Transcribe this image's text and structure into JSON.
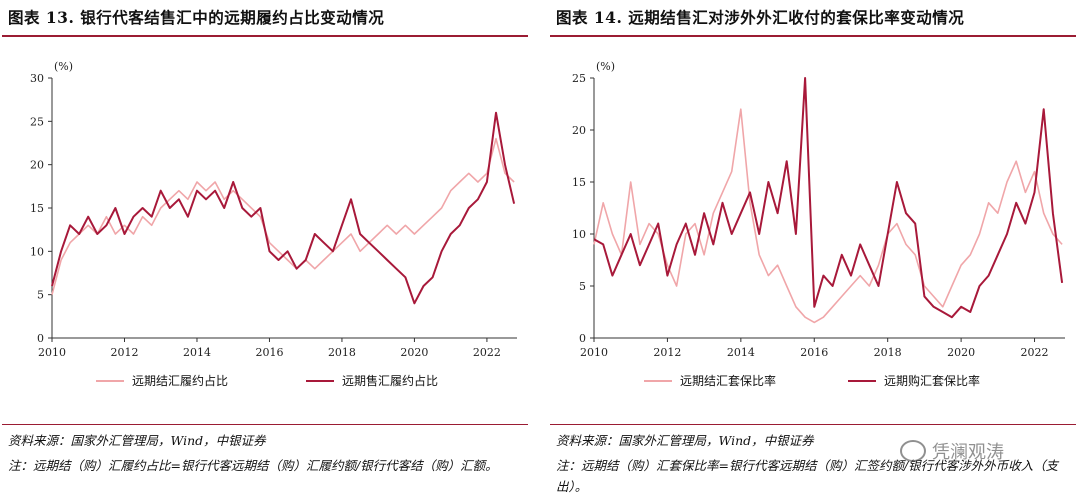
{
  "left": {
    "title": "图表 13. 银行代客结售汇中的远期履约占比变动情况",
    "source": "资料来源：国家外汇管理局，Wind，中银证券",
    "note": "注：远期结（购）汇履约占比=银行代客远期结（购）汇履约额/银行代客结（购）汇额。"
  },
  "right": {
    "title": "图表 14. 远期结售汇对涉外外汇收付的套保比率变动情况",
    "source": "资料来源：国家外汇管理局，Wind，中银证券",
    "note": "注：远期结（购）汇套保比率=银行代客远期结（购）汇签约额/银行代客涉外外币收入（支出）。"
  },
  "watermark": "凭澜观涛",
  "colors": {
    "light": "#f0a6a9",
    "dark": "#a8193a",
    "axis": "#333333"
  },
  "chart_data": [
    {
      "type": "line",
      "unit_label": "(%)",
      "ylim": [
        0,
        30
      ],
      "yticks": [
        0,
        5,
        10,
        15,
        20,
        25,
        30
      ],
      "xlim": [
        2010,
        2022.83
      ],
      "xticks": [
        2010,
        2012,
        2014,
        2016,
        2018,
        2020,
        2022
      ],
      "series": [
        {
          "name": "远期结汇履约占比",
          "color": "#f0a6a9",
          "x": [
            2010.0,
            2010.25,
            2010.5,
            2010.75,
            2011.0,
            2011.25,
            2011.5,
            2011.75,
            2012.0,
            2012.25,
            2012.5,
            2012.75,
            2013.0,
            2013.25,
            2013.5,
            2013.75,
            2014.0,
            2014.25,
            2014.5,
            2014.75,
            2015.0,
            2015.25,
            2015.5,
            2015.75,
            2016.0,
            2016.25,
            2016.5,
            2016.75,
            2017.0,
            2017.25,
            2017.5,
            2017.75,
            2018.0,
            2018.25,
            2018.5,
            2018.75,
            2019.0,
            2019.25,
            2019.5,
            2019.75,
            2020.0,
            2020.25,
            2020.5,
            2020.75,
            2021.0,
            2021.25,
            2021.5,
            2021.75,
            2022.0,
            2022.25,
            2022.5,
            2022.75
          ],
          "values": [
            5,
            9,
            11,
            12,
            13,
            12,
            14,
            12,
            13,
            12,
            14,
            13,
            15,
            16,
            17,
            16,
            18,
            17,
            18,
            16,
            17,
            16,
            15,
            14,
            11,
            10,
            9,
            8,
            9,
            8,
            9,
            10,
            11,
            12,
            10,
            11,
            12,
            13,
            12,
            13,
            12,
            13,
            14,
            15,
            17,
            18,
            19,
            18,
            19,
            23,
            19,
            18
          ]
        },
        {
          "name": "远期售汇履约占比",
          "color": "#a8193a",
          "x": [
            2010.0,
            2010.25,
            2010.5,
            2010.75,
            2011.0,
            2011.25,
            2011.5,
            2011.75,
            2012.0,
            2012.25,
            2012.5,
            2012.75,
            2013.0,
            2013.25,
            2013.5,
            2013.75,
            2014.0,
            2014.25,
            2014.5,
            2014.75,
            2015.0,
            2015.25,
            2015.5,
            2015.75,
            2016.0,
            2016.25,
            2016.5,
            2016.75,
            2017.0,
            2017.25,
            2017.5,
            2017.75,
            2018.0,
            2018.25,
            2018.5,
            2018.75,
            2019.0,
            2019.25,
            2019.5,
            2019.75,
            2020.0,
            2020.25,
            2020.5,
            2020.75,
            2021.0,
            2021.25,
            2021.5,
            2021.75,
            2022.0,
            2022.25,
            2022.5,
            2022.75
          ],
          "values": [
            6,
            10,
            13,
            12,
            14,
            12,
            13,
            15,
            12,
            14,
            15,
            14,
            17,
            15,
            16,
            14,
            17,
            16,
            17,
            15,
            18,
            15,
            14,
            15,
            10,
            9,
            10,
            8,
            9,
            12,
            11,
            10,
            13,
            16,
            12,
            11,
            10,
            9,
            8,
            7,
            4,
            6,
            7,
            10,
            12,
            13,
            15,
            16,
            18,
            26,
            20,
            15.5
          ]
        }
      ]
    },
    {
      "type": "line",
      "unit_label": "(%)",
      "ylim": [
        0,
        25
      ],
      "yticks": [
        0,
        5,
        10,
        15,
        20,
        25
      ],
      "xlim": [
        2010,
        2022.83
      ],
      "xticks": [
        2010,
        2012,
        2014,
        2016,
        2018,
        2020,
        2022
      ],
      "series": [
        {
          "name": "远期结汇套保比率",
          "color": "#f0a6a9",
          "x": [
            2010.0,
            2010.25,
            2010.5,
            2010.75,
            2011.0,
            2011.25,
            2011.5,
            2011.75,
            2012.0,
            2012.25,
            2012.5,
            2012.75,
            2013.0,
            2013.25,
            2013.5,
            2013.75,
            2014.0,
            2014.25,
            2014.5,
            2014.75,
            2015.0,
            2015.25,
            2015.5,
            2015.75,
            2016.0,
            2016.25,
            2016.5,
            2016.75,
            2017.0,
            2017.25,
            2017.5,
            2017.75,
            2018.0,
            2018.25,
            2018.5,
            2018.75,
            2019.0,
            2019.25,
            2019.5,
            2019.75,
            2020.0,
            2020.25,
            2020.5,
            2020.75,
            2021.0,
            2021.25,
            2021.5,
            2021.75,
            2022.0,
            2022.25,
            2022.5,
            2022.75
          ],
          "values": [
            9,
            13,
            10,
            8,
            15,
            9,
            11,
            10,
            7,
            5,
            10,
            11,
            8,
            12,
            14,
            16,
            22,
            13,
            8,
            6,
            7,
            5,
            3,
            2,
            1.5,
            2,
            3,
            4,
            5,
            6,
            5,
            7,
            10,
            11,
            9,
            8,
            5,
            4,
            3,
            5,
            7,
            8,
            10,
            13,
            12,
            15,
            17,
            14,
            16,
            12,
            10,
            9
          ]
        },
        {
          "name": "远期购汇套保比率",
          "color": "#a8193a",
          "x": [
            2010.0,
            2010.25,
            2010.5,
            2010.75,
            2011.0,
            2011.25,
            2011.5,
            2011.75,
            2012.0,
            2012.25,
            2012.5,
            2012.75,
            2013.0,
            2013.25,
            2013.5,
            2013.75,
            2014.0,
            2014.25,
            2014.5,
            2014.75,
            2015.0,
            2015.25,
            2015.5,
            2015.75,
            2016.0,
            2016.25,
            2016.5,
            2016.75,
            2017.0,
            2017.25,
            2017.5,
            2017.75,
            2018.0,
            2018.25,
            2018.5,
            2018.75,
            2019.0,
            2019.25,
            2019.5,
            2019.75,
            2020.0,
            2020.25,
            2020.5,
            2020.75,
            2021.0,
            2021.25,
            2021.5,
            2021.75,
            2022.0,
            2022.25,
            2022.5,
            2022.75
          ],
          "values": [
            9.5,
            9,
            6,
            8,
            10,
            7,
            9,
            11,
            6,
            9,
            11,
            8,
            12,
            9,
            13,
            10,
            12,
            14,
            10,
            15,
            12,
            17,
            10,
            25,
            3,
            6,
            5,
            8,
            6,
            9,
            7,
            5,
            10,
            15,
            12,
            11,
            4,
            3,
            2.5,
            2,
            3,
            2.5,
            5,
            6,
            8,
            10,
            13,
            11,
            14,
            22,
            12,
            5.3
          ]
        }
      ]
    }
  ]
}
